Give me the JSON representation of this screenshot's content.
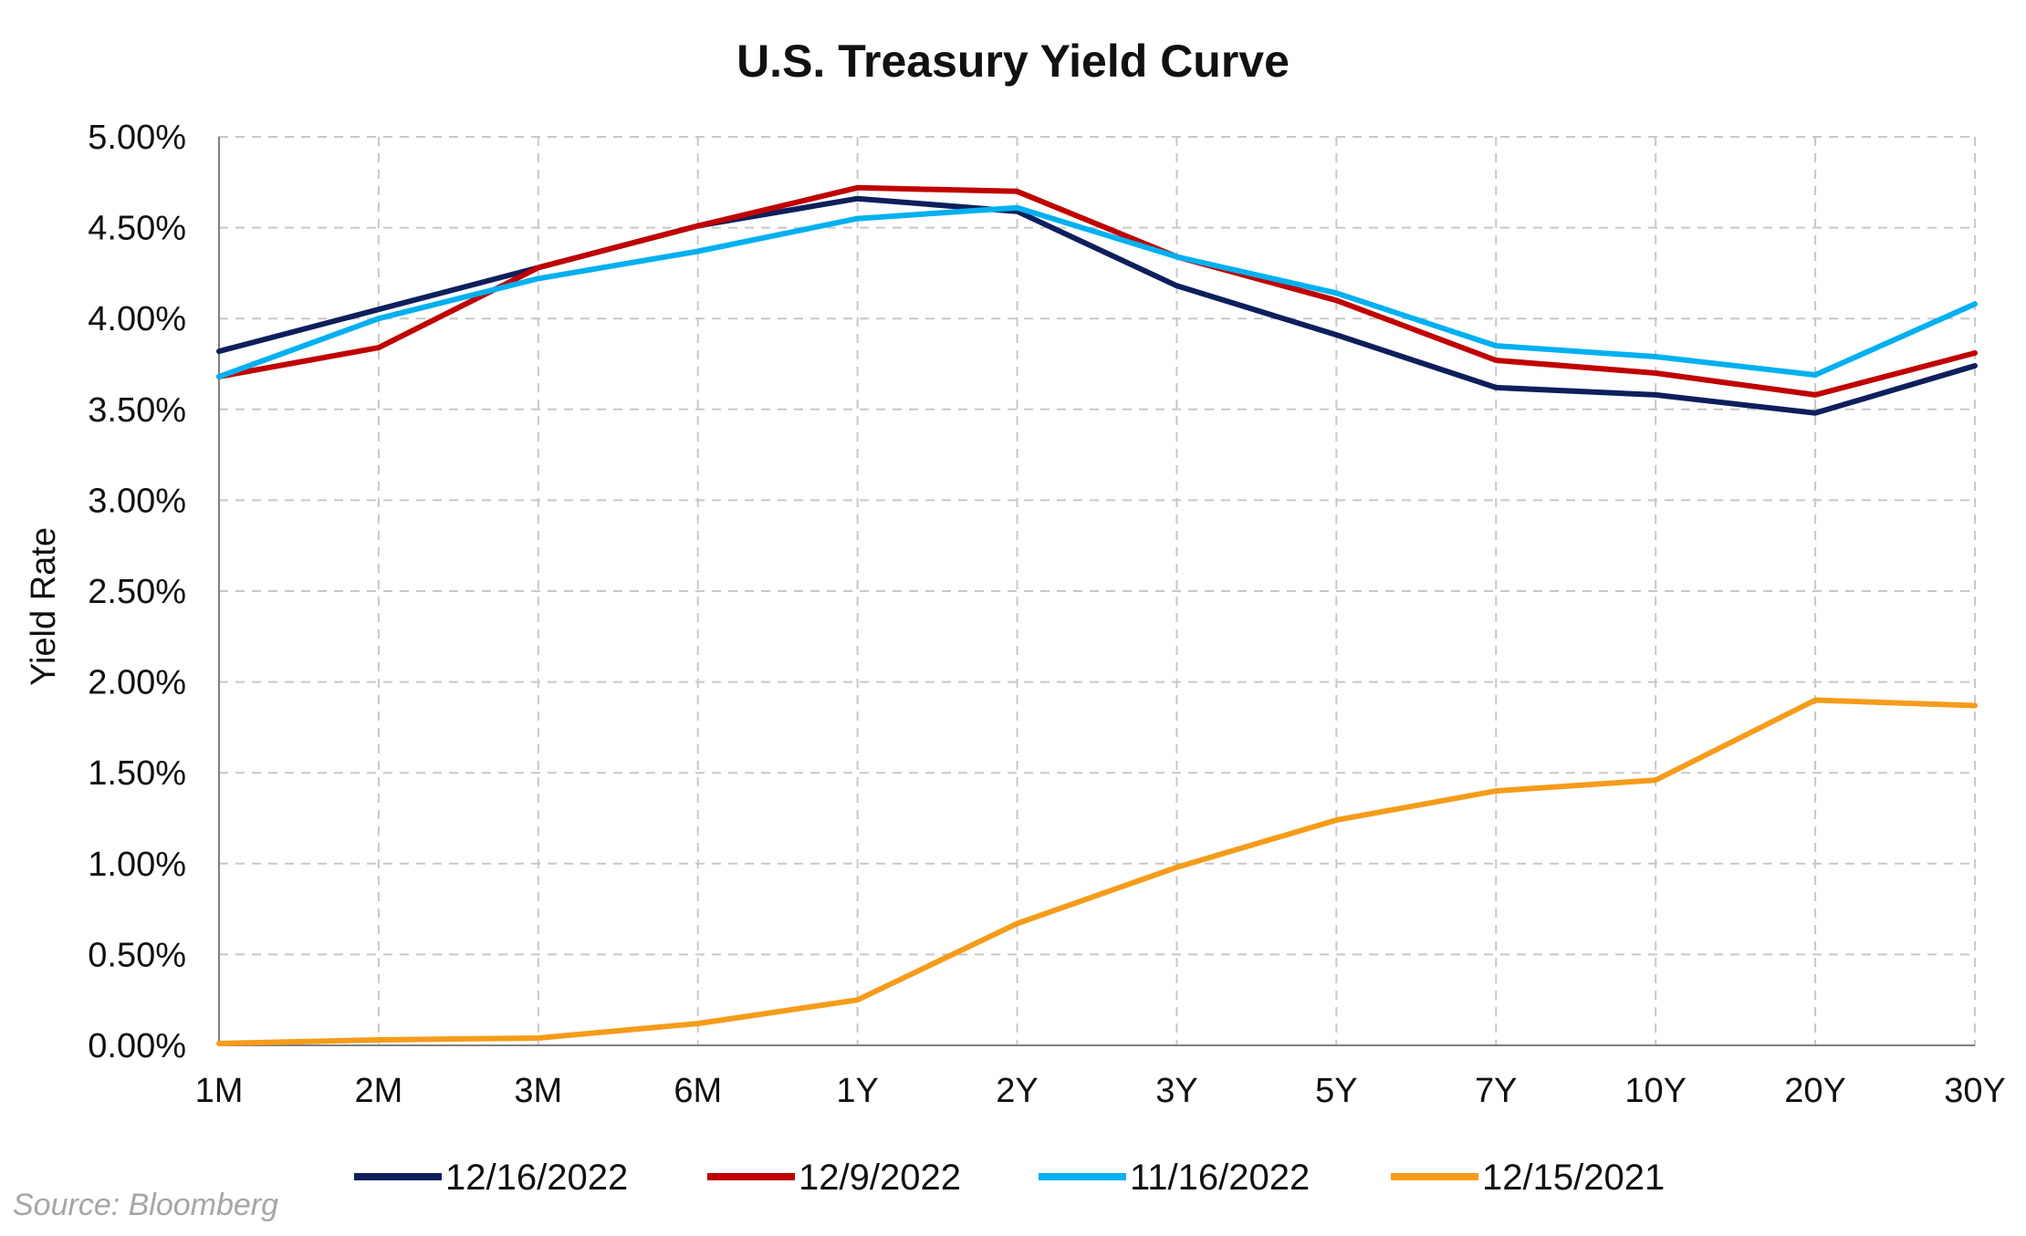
{
  "chart_data": {
    "type": "line",
    "title": "U.S. Treasury Yield Curve",
    "ylabel": "Yield Rate",
    "xlabel": "",
    "categories": [
      "1M",
      "2M",
      "3M",
      "6M",
      "1Y",
      "2Y",
      "3Y",
      "5Y",
      "7Y",
      "10Y",
      "20Y",
      "30Y"
    ],
    "ylim": [
      0,
      5
    ],
    "yticks": [
      "0.00%",
      "0.50%",
      "1.00%",
      "1.50%",
      "2.00%",
      "2.50%",
      "3.00%",
      "3.50%",
      "4.00%",
      "4.50%",
      "5.00%"
    ],
    "grid": true,
    "legend_position": "bottom",
    "series": [
      {
        "name": "12/16/2022",
        "color": "#0d1f5c",
        "values": [
          3.82,
          4.05,
          4.28,
          4.51,
          4.66,
          4.59,
          4.18,
          3.91,
          3.62,
          3.58,
          3.48,
          3.74
        ]
      },
      {
        "name": "12/9/2022",
        "color": "#c00000",
        "values": [
          3.68,
          3.84,
          4.28,
          4.51,
          4.72,
          4.7,
          4.34,
          4.1,
          3.77,
          3.7,
          3.58,
          3.81
        ]
      },
      {
        "name": "11/16/2022",
        "color": "#00b0f0",
        "values": [
          3.68,
          4.0,
          4.22,
          4.37,
          4.55,
          4.61,
          4.34,
          4.14,
          3.85,
          3.79,
          3.69,
          4.08
        ]
      },
      {
        "name": "12/15/2021",
        "color": "#f59c1a",
        "values": [
          0.01,
          0.03,
          0.04,
          0.12,
          0.25,
          0.67,
          0.98,
          1.24,
          1.4,
          1.46,
          1.9,
          1.87
        ]
      }
    ]
  },
  "source_note": "Source: Bloomberg"
}
